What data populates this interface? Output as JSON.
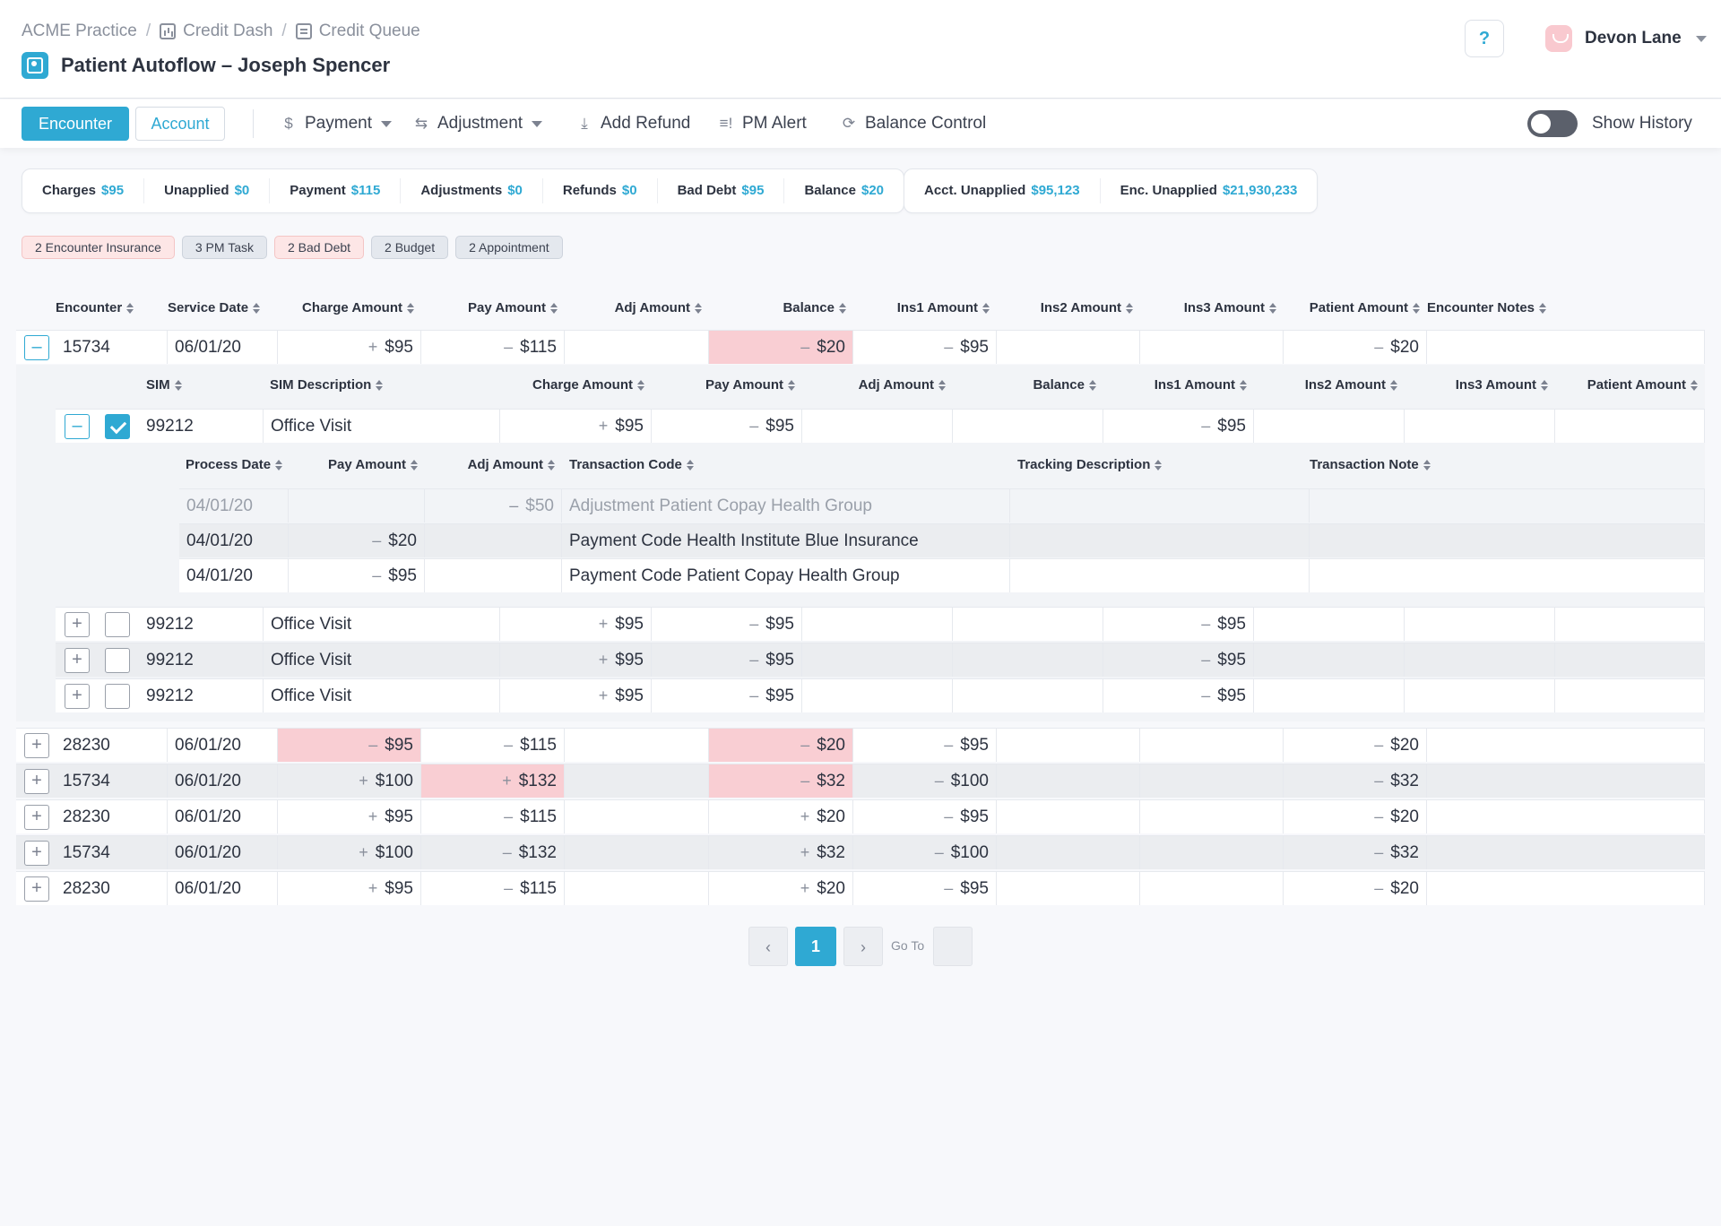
{
  "breadcrumb": [
    "ACME Practice",
    "Credit Dash",
    "Credit Queue"
  ],
  "page_title": "Patient Autoflow – Joseph Spencer",
  "help_label": "?",
  "user": {
    "name": "Devon Lane"
  },
  "toolbar": {
    "encounter": "Encounter",
    "account": "Account",
    "payment": "Payment",
    "adjustment": "Adjustment",
    "add_refund": "Add Refund",
    "pm_alert": "PM Alert",
    "balance_control": "Balance Control",
    "show_history": "Show History",
    "show_history_on": false
  },
  "summary": [
    {
      "label": "Charges",
      "value": "$95"
    },
    {
      "label": "Unapplied",
      "value": "$0"
    },
    {
      "label": "Payment",
      "value": "$115"
    },
    {
      "label": "Adjustments",
      "value": "$0"
    },
    {
      "label": "Refunds",
      "value": "$0"
    },
    {
      "label": "Bad Debt",
      "value": "$95"
    },
    {
      "label": "Balance",
      "value": "$20"
    }
  ],
  "summary2": [
    {
      "label": "Acct. Unapplied",
      "value": "$95,123"
    },
    {
      "label": "Enc. Unapplied",
      "value": "$21,930,233"
    }
  ],
  "badges": [
    {
      "label": "2 Encounter Insurance",
      "color": "pink"
    },
    {
      "label": "3 PM Task",
      "color": "gray"
    },
    {
      "label": "2 Bad Debt",
      "color": "pink"
    },
    {
      "label": "2 Budget",
      "color": "gray"
    },
    {
      "label": "2 Appointment",
      "color": "gray"
    }
  ],
  "encounter_headers": [
    "Encounter",
    "Service Date",
    "Charge Amount",
    "Pay Amount",
    "Adj Amount",
    "Balance",
    "Ins1 Amount",
    "Ins2 Amount",
    "Ins3 Amount",
    "Patient Amount",
    "Encounter Notes"
  ],
  "sim_headers": [
    "SIM",
    "SIM Description",
    "Charge Amount",
    "Pay Amount",
    "Adj Amount",
    "Balance",
    "Ins1 Amount",
    "Ins2 Amount",
    "Ins3 Amount",
    "Patient Amount"
  ],
  "txn_headers": [
    "Process Date",
    "Pay Amount",
    "Adj Amount",
    "Transaction Code",
    "Tracking Description",
    "Transaction Note"
  ],
  "encounters": [
    {
      "encounter": "15734",
      "date": "06/01/20",
      "charge": "$95",
      "charge_sign": "+",
      "pay": "$115",
      "pay_sign": "–",
      "adj": "",
      "balance": "$20",
      "balance_sign": "–",
      "ins1": "$95",
      "ins1_sign": "–",
      "ins2": "",
      "ins3": "",
      "patient": "$20",
      "patient_sign": "–",
      "expanded": true,
      "balance_alert": true
    },
    {
      "encounter": "28230",
      "date": "06/01/20",
      "charge": "$95",
      "charge_sign": "–",
      "pay": "$115",
      "pay_sign": "–",
      "adj": "",
      "balance": "$20",
      "balance_sign": "–",
      "ins1": "$95",
      "ins1_sign": "–",
      "ins2": "",
      "ins3": "",
      "patient": "$20",
      "patient_sign": "–",
      "charge_alert": true,
      "balance_alert": true
    },
    {
      "encounter": "15734",
      "date": "06/01/20",
      "charge": "$100",
      "charge_sign": "+",
      "pay": "$132",
      "pay_sign": "+",
      "adj": "",
      "balance": "$32",
      "balance_sign": "–",
      "ins1": "$100",
      "ins1_sign": "–",
      "ins2": "",
      "ins3": "",
      "patient": "$32",
      "patient_sign": "–",
      "pay_alert": true,
      "balance_alert": true
    },
    {
      "encounter": "28230",
      "date": "06/01/20",
      "charge": "$95",
      "charge_sign": "+",
      "pay": "$115",
      "pay_sign": "–",
      "adj": "",
      "balance": "$20",
      "balance_sign": "+",
      "ins1": "$95",
      "ins1_sign": "–",
      "ins2": "",
      "ins3": "",
      "patient": "$20",
      "patient_sign": "–"
    },
    {
      "encounter": "15734",
      "date": "06/01/20",
      "charge": "$100",
      "charge_sign": "+",
      "pay": "$132",
      "pay_sign": "–",
      "adj": "",
      "balance": "$32",
      "balance_sign": "+",
      "ins1": "$100",
      "ins1_sign": "–",
      "ins2": "",
      "ins3": "",
      "patient": "$32",
      "patient_sign": "–"
    },
    {
      "encounter": "28230",
      "date": "06/01/20",
      "charge": "$95",
      "charge_sign": "+",
      "pay": "$115",
      "pay_sign": "–",
      "adj": "",
      "balance": "$20",
      "balance_sign": "+",
      "ins1": "$95",
      "ins1_sign": "–",
      "ins2": "",
      "ins3": "",
      "patient": "$20",
      "patient_sign": "–"
    }
  ],
  "sims": [
    {
      "sim": "99212",
      "desc": "Office Visit",
      "charge": "$95",
      "charge_sign": "+",
      "pay": "$95",
      "pay_sign": "–",
      "ins1": "$95",
      "ins1_sign": "–",
      "expanded": true,
      "checked": true
    },
    {
      "sim": "99212",
      "desc": "Office Visit",
      "charge": "$95",
      "charge_sign": "+",
      "pay": "$95",
      "pay_sign": "–",
      "ins1": "$95",
      "ins1_sign": "–",
      "expanded": false,
      "checked": false
    },
    {
      "sim": "99212",
      "desc": "Office Visit",
      "charge": "$95",
      "charge_sign": "+",
      "pay": "$95",
      "pay_sign": "–",
      "ins1": "$95",
      "ins1_sign": "–",
      "expanded": false,
      "checked": false
    },
    {
      "sim": "99212",
      "desc": "Office Visit",
      "charge": "$95",
      "charge_sign": "+",
      "pay": "$95",
      "pay_sign": "–",
      "ins1": "$95",
      "ins1_sign": "–",
      "expanded": false,
      "checked": false
    }
  ],
  "transactions": [
    {
      "date": "04/01/20",
      "pay": "",
      "pay_sign": "",
      "adj": "$50",
      "adj_sign": "–",
      "code": "Adjustment Patient Copay Health Group",
      "muted": true
    },
    {
      "date": "04/01/20",
      "pay": "$20",
      "pay_sign": "–",
      "adj": "",
      "adj_sign": "",
      "code": "Payment Code Health Institute Blue Insurance",
      "muted": false
    },
    {
      "date": "04/01/20",
      "pay": "$95",
      "pay_sign": "–",
      "adj": "",
      "adj_sign": "",
      "code": "Payment Code Patient Copay Health Group",
      "muted": false
    }
  ],
  "pagination": {
    "current": "1",
    "goto_label": "Go To"
  },
  "colors": {
    "accent": "#2fa9d3",
    "alert": "#f9ced3",
    "badge_pink": "#fde6e6",
    "badge_gray": "#e4e8ee"
  }
}
